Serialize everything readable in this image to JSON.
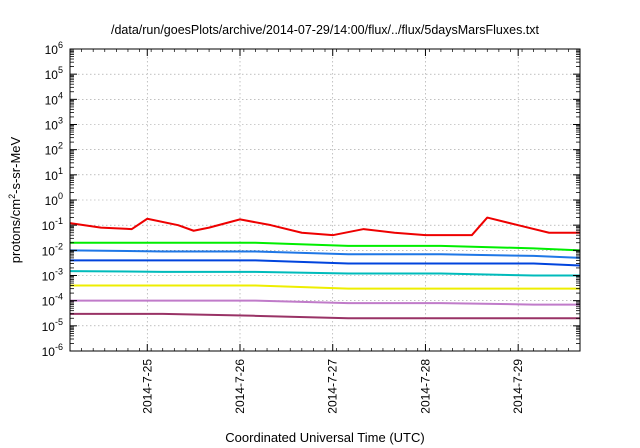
{
  "chart_data": {
    "type": "line",
    "title": "/data/run/goesPlots/archive/2014-07-29/14:00/flux/../flux/5daysMarsFluxes.txt",
    "xlabel": "Coordinated Universal Time (UTC)",
    "ylabel": "protons/cm²-s-sr-MeV",
    "ylabel_base": "protons/cm",
    "ylabel_sup": "2",
    "ylabel_rest": "-s-sr-MeV",
    "x_scale": "time",
    "xlim": [
      "2014-07-24 04:00",
      "2014-07-29 16:00"
    ],
    "x_ticks": [
      "2014-7-25",
      "2014-7-26",
      "2014-7-27",
      "2014-7-28",
      "2014-7-29"
    ],
    "y_scale": "log",
    "ylim": [
      1e-06,
      1000000.0
    ],
    "y_ticks": [
      {
        "base": "10",
        "exp": "-6"
      },
      {
        "base": "10",
        "exp": "-5"
      },
      {
        "base": "10",
        "exp": "-4"
      },
      {
        "base": "10",
        "exp": "-3"
      },
      {
        "base": "10",
        "exp": "-2"
      },
      {
        "base": "10",
        "exp": "-1"
      },
      {
        "base": "10",
        "exp": "0"
      },
      {
        "base": "10",
        "exp": "1"
      },
      {
        "base": "10",
        "exp": "2"
      },
      {
        "base": "10",
        "exp": "3"
      },
      {
        "base": "10",
        "exp": "4"
      },
      {
        "base": "10",
        "exp": "5"
      },
      {
        "base": "10",
        "exp": "6"
      }
    ],
    "grid": true,
    "legend": "none",
    "series_colors": [
      "#ee0000",
      "#00ee00",
      "#1f77e6",
      "#0044dd",
      "#00bbbb",
      "#eeee00",
      "#c07bc9",
      "#993366"
    ],
    "series": [
      {
        "color": "#ee0000",
        "x": [
          "2014-07-24 04:00",
          "2014-07-24 12:00",
          "2014-07-24 20:00",
          "2014-07-25 00:00",
          "2014-07-25 08:00",
          "2014-07-25 12:00",
          "2014-07-25 16:00",
          "2014-07-26 00:00",
          "2014-07-26 08:00",
          "2014-07-26 16:00",
          "2014-07-27 00:00",
          "2014-07-27 08:00",
          "2014-07-27 16:00",
          "2014-07-28 00:00",
          "2014-07-28 12:00",
          "2014-07-28 16:00",
          "2014-07-29 00:00",
          "2014-07-29 08:00",
          "2014-07-29 16:00"
        ],
        "y": [
          0.12,
          0.08,
          0.07,
          0.18,
          0.1,
          0.06,
          0.08,
          0.17,
          0.1,
          0.05,
          0.04,
          0.07,
          0.05,
          0.04,
          0.04,
          0.2,
          0.1,
          0.05,
          0.05
        ]
      },
      {
        "color": "#00ee00",
        "x": [
          "2014-07-24 04:00",
          "2014-07-25 04:00",
          "2014-07-26 04:00",
          "2014-07-27 04:00",
          "2014-07-28 04:00",
          "2014-07-29 04:00",
          "2014-07-29 16:00"
        ],
        "y": [
          0.02,
          0.02,
          0.02,
          0.015,
          0.015,
          0.012,
          0.01
        ]
      },
      {
        "color": "#1f77e6",
        "x": [
          "2014-07-24 04:00",
          "2014-07-25 04:00",
          "2014-07-26 04:00",
          "2014-07-27 04:00",
          "2014-07-28 04:00",
          "2014-07-29 04:00",
          "2014-07-29 16:00"
        ],
        "y": [
          0.01,
          0.009,
          0.009,
          0.007,
          0.007,
          0.006,
          0.005
        ]
      },
      {
        "color": "#0044dd",
        "x": [
          "2014-07-24 04:00",
          "2014-07-25 04:00",
          "2014-07-26 04:00",
          "2014-07-27 04:00",
          "2014-07-28 04:00",
          "2014-07-29 04:00",
          "2014-07-29 16:00"
        ],
        "y": [
          0.004,
          0.004,
          0.004,
          0.003,
          0.003,
          0.003,
          0.0025
        ]
      },
      {
        "color": "#00bbbb",
        "x": [
          "2014-07-24 04:00",
          "2014-07-25 04:00",
          "2014-07-26 04:00",
          "2014-07-27 04:00",
          "2014-07-28 04:00",
          "2014-07-29 04:00",
          "2014-07-29 16:00"
        ],
        "y": [
          0.0015,
          0.0014,
          0.0014,
          0.0012,
          0.0012,
          0.001,
          0.001
        ]
      },
      {
        "color": "#eeee00",
        "x": [
          "2014-07-24 04:00",
          "2014-07-25 04:00",
          "2014-07-26 04:00",
          "2014-07-27 04:00",
          "2014-07-28 04:00",
          "2014-07-29 04:00",
          "2014-07-29 16:00"
        ],
        "y": [
          0.0004,
          0.0004,
          0.0004,
          0.0003,
          0.0003,
          0.0003,
          0.0003
        ]
      },
      {
        "color": "#c07bc9",
        "x": [
          "2014-07-24 04:00",
          "2014-07-25 04:00",
          "2014-07-26 04:00",
          "2014-07-27 04:00",
          "2014-07-28 04:00",
          "2014-07-29 04:00",
          "2014-07-29 16:00"
        ],
        "y": [
          0.0001,
          0.0001,
          0.0001,
          8e-05,
          8e-05,
          7e-05,
          7e-05
        ]
      },
      {
        "color": "#993366",
        "x": [
          "2014-07-24 04:00",
          "2014-07-25 04:00",
          "2014-07-26 04:00",
          "2014-07-27 04:00",
          "2014-07-28 04:00",
          "2014-07-29 04:00",
          "2014-07-29 16:00"
        ],
        "y": [
          3e-05,
          3e-05,
          2.5e-05,
          2e-05,
          2e-05,
          2e-05,
          2e-05
        ]
      }
    ]
  }
}
